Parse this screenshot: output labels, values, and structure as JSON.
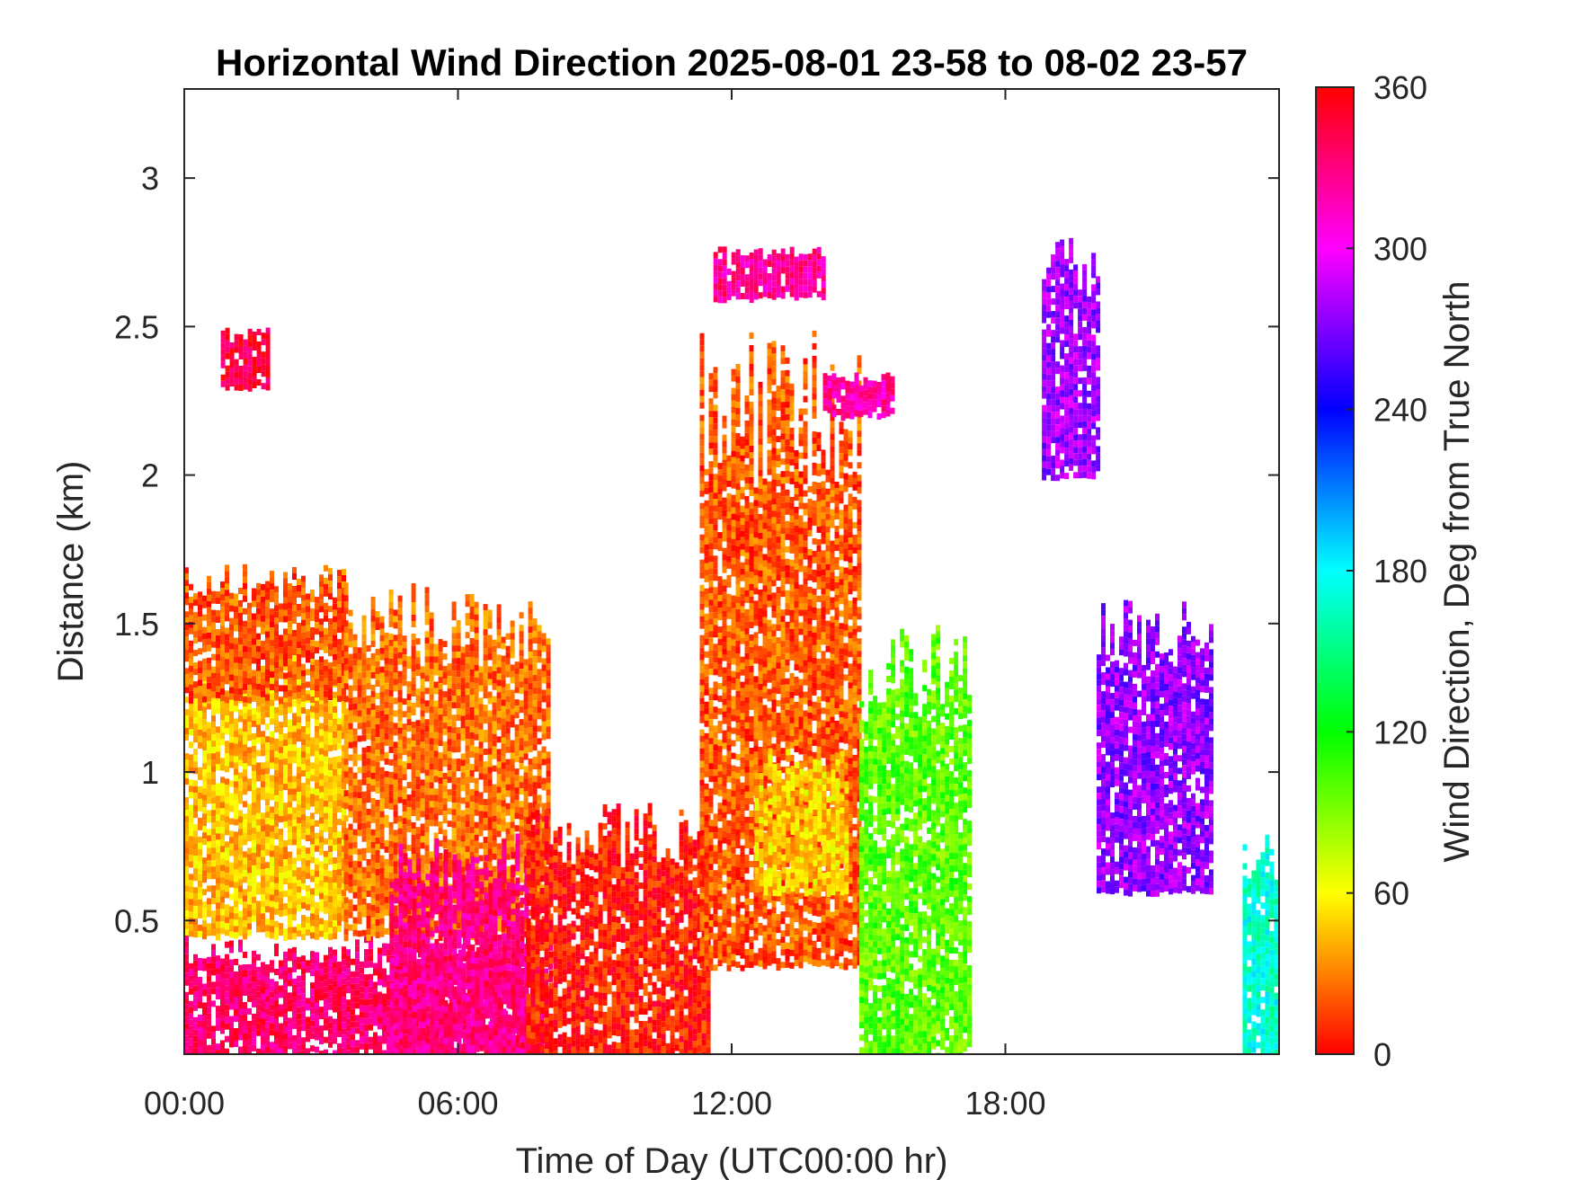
{
  "chart_data": {
    "type": "heatmap",
    "title": "Horizontal Wind Direction 2025-08-01 23-58 to 08-02 23-57",
    "xlabel": "Time of Day (UTC00:00 hr)",
    "ylabel": "Distance (km)",
    "colorbar_label": "Wind Direction, Deg from True North",
    "x_unit": "hour",
    "xlim": [
      0,
      24
    ],
    "ylim": [
      0.05,
      3.3
    ],
    "clim": [
      0,
      360
    ],
    "x_ticks": [
      {
        "value": 0,
        "label": "00:00"
      },
      {
        "value": 6,
        "label": "06:00"
      },
      {
        "value": 12,
        "label": "12:00"
      },
      {
        "value": 18,
        "label": "18:00"
      }
    ],
    "y_ticks": [
      {
        "value": 0.5,
        "label": "0.5"
      },
      {
        "value": 1,
        "label": "1"
      },
      {
        "value": 1.5,
        "label": "1.5"
      },
      {
        "value": 2,
        "label": "2"
      },
      {
        "value": 2.5,
        "label": "2.5"
      },
      {
        "value": 3,
        "label": "3"
      }
    ],
    "colorbar_ticks": [
      {
        "value": 0,
        "label": "0"
      },
      {
        "value": 60,
        "label": "60"
      },
      {
        "value": 120,
        "label": "120"
      },
      {
        "value": 180,
        "label": "180"
      },
      {
        "value": 240,
        "label": "240"
      },
      {
        "value": 300,
        "label": "300"
      },
      {
        "value": 360,
        "label": "360"
      }
    ],
    "colormap": [
      {
        "value": 0,
        "color": "#ff0000"
      },
      {
        "value": 30,
        "color": "#ff8000"
      },
      {
        "value": 60,
        "color": "#ffff00"
      },
      {
        "value": 120,
        "color": "#00ff00"
      },
      {
        "value": 180,
        "color": "#00ffff"
      },
      {
        "value": 240,
        "color": "#0000ff"
      },
      {
        "value": 300,
        "color": "#ff00ff"
      },
      {
        "value": 360,
        "color": "#ff0000"
      }
    ],
    "grid": false,
    "regions": [
      {
        "name": "night-low-jet",
        "t0": 0.0,
        "t1": 8.0,
        "h0": 0.05,
        "h1": 0.45,
        "dir": 335
      },
      {
        "name": "night-mid",
        "t0": 0.0,
        "t1": 3.5,
        "h0": 0.45,
        "h1": 1.45,
        "dir": 45
      },
      {
        "name": "night-top",
        "t0": 0.0,
        "t1": 3.5,
        "h0": 1.25,
        "h1": 1.7,
        "dir": 20
      },
      {
        "name": "morning-column",
        "t0": 3.5,
        "t1": 8.0,
        "h0": 0.45,
        "h1": 1.65,
        "dir": 25
      },
      {
        "name": "morning-low-pink",
        "t0": 4.5,
        "t1": 7.5,
        "h0": 0.05,
        "h1": 0.8,
        "dir": 330
      },
      {
        "name": "midday-red",
        "t0": 7.5,
        "t1": 11.5,
        "h0": 0.05,
        "h1": 0.9,
        "dir": 5
      },
      {
        "name": "afternoon-column",
        "t0": 11.3,
        "t1": 14.8,
        "h0": 0.35,
        "h1": 2.5,
        "dir": 20
      },
      {
        "name": "afternoon-yellow-core",
        "t0": 12.5,
        "t1": 14.5,
        "h0": 0.6,
        "h1": 1.1,
        "dir": 50
      },
      {
        "name": "afternoon-top-pink",
        "t0": 14.0,
        "t1": 15.5,
        "h0": 2.2,
        "h1": 2.35,
        "dir": 320
      },
      {
        "name": "afternoon-aloft-magenta",
        "t0": 11.6,
        "t1": 14.0,
        "h0": 2.6,
        "h1": 2.78,
        "dir": 325
      },
      {
        "name": "convective-green",
        "t0": 14.8,
        "t1": 17.2,
        "h0": 0.05,
        "h1": 1.5,
        "dir": 100
      },
      {
        "name": "evening-purple",
        "t0": 20.0,
        "t1": 22.5,
        "h0": 0.6,
        "h1": 1.6,
        "dir": 275
      },
      {
        "name": "evening-purple-aloft",
        "t0": 18.8,
        "t1": 20.0,
        "h0": 2.0,
        "h1": 2.8,
        "dir": 278
      },
      {
        "name": "late-cyan",
        "t0": 23.2,
        "t1": 24.0,
        "h0": 0.05,
        "h1": 0.8,
        "dir": 170
      },
      {
        "name": "early-aloft-pink",
        "t0": 0.8,
        "t1": 1.8,
        "h0": 2.3,
        "h1": 2.5,
        "dir": 345
      }
    ]
  }
}
